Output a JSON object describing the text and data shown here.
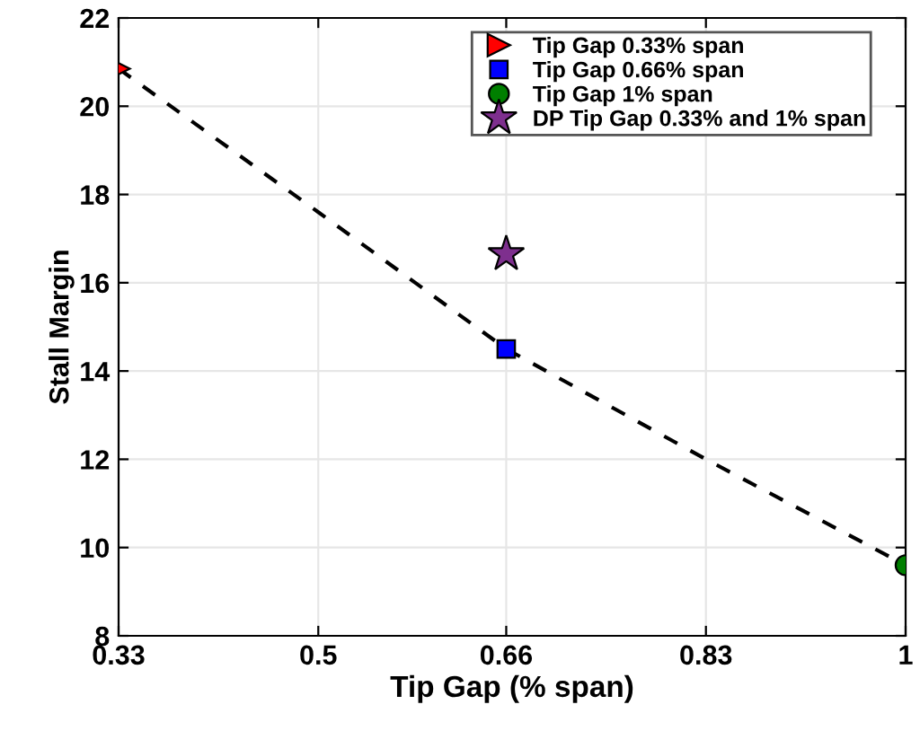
{
  "chart_data": {
    "type": "scatter",
    "xlabel": "Tip Gap (% span)",
    "ylabel": "Stall Margin",
    "xlim": [
      0.33,
      1
    ],
    "xticks": [
      0.33,
      0.5,
      0.66,
      0.83,
      1
    ],
    "ylim": [
      8,
      22
    ],
    "yticks": [
      8,
      10,
      12,
      14,
      16,
      18,
      20,
      22
    ],
    "grid": true,
    "legend": "top right",
    "series": [
      {
        "type": "line",
        "color": "#000000",
        "line_style": "dashed",
        "marker": "none",
        "x": [
          0.33,
          0.5,
          0.66,
          0.83,
          1
        ],
        "values": [
          20.85,
          17.6,
          14.5,
          12.0,
          9.6
        ]
      },
      {
        "name": "Tip Gap 0.33% span",
        "color": "#ff0000",
        "marker": "triangle",
        "x": [
          0.33
        ],
        "values": [
          20.85
        ]
      },
      {
        "name": "Tip Gap 0.66% span",
        "color": "#0000ff",
        "marker": "square",
        "x": [
          0.66
        ],
        "values": [
          14.5
        ]
      },
      {
        "name": "Tip Gap 1% span",
        "color": "#007f00",
        "marker": "circle",
        "x": [
          1
        ],
        "values": [
          9.6
        ]
      },
      {
        "name": "DP Tip Gap 0.33% and 1% span",
        "color": "#7e2f8e",
        "marker": "star",
        "x": [
          0.66
        ],
        "values": [
          16.65
        ]
      }
    ]
  }
}
